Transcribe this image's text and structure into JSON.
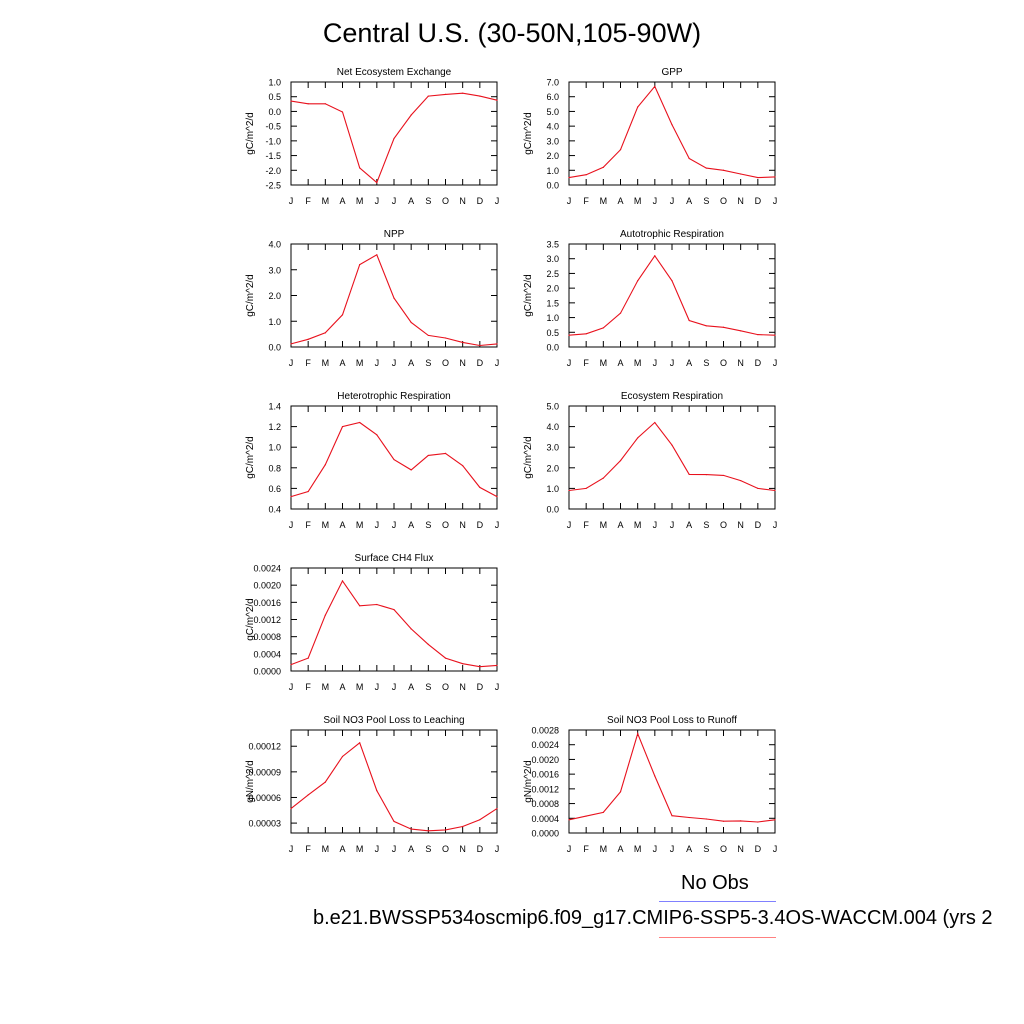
{
  "title": "Central U.S. (30-50N,105-90W)",
  "legend": {
    "obs_label": "No Obs",
    "case_label": "b.e21.BWSSP534oscmip6.f09_g17.CMIP6-SSP5-3.4OS-WACCM.004 (yrs 2",
    "obs_color": "#8080ff",
    "case_color": "#ff8080"
  },
  "line_color": "#e8111d",
  "chart_data": [
    {
      "type": "line",
      "title": "Net Ecosystem Exchange",
      "xlabel": "",
      "ylabel": "gC/m^2/d",
      "categories": [
        "J",
        "F",
        "M",
        "A",
        "M",
        "J",
        "J",
        "A",
        "S",
        "O",
        "N",
        "D",
        "J"
      ],
      "values": [
        0.35,
        0.26,
        0.26,
        -0.02,
        -1.92,
        -2.42,
        -0.92,
        -0.12,
        0.52,
        0.58,
        0.62,
        0.52,
        0.38
      ],
      "ylim": [
        -2.5,
        1.0
      ],
      "yticks": [
        -2.5,
        -2.0,
        -1.5,
        -1.0,
        -0.5,
        0.0,
        0.5,
        1.0
      ],
      "ytick_labels": [
        "-2.5",
        "-2.0",
        "-1.5",
        "-1.0",
        "-0.5",
        "0.0",
        "0.5",
        "1.0"
      ]
    },
    {
      "type": "line",
      "title": "GPP",
      "xlabel": "",
      "ylabel": "gC/m^2/d",
      "categories": [
        "J",
        "F",
        "M",
        "A",
        "M",
        "J",
        "J",
        "A",
        "S",
        "O",
        "N",
        "D",
        "J"
      ],
      "values": [
        0.5,
        0.7,
        1.2,
        2.4,
        5.3,
        6.7,
        4.1,
        1.8,
        1.15,
        1.0,
        0.75,
        0.5,
        0.55
      ],
      "ylim": [
        0.0,
        7.0
      ],
      "yticks": [
        0,
        1,
        2,
        3,
        4,
        5,
        6,
        7
      ],
      "ytick_labels": [
        "0.0",
        "1.0",
        "2.0",
        "3.0",
        "4.0",
        "5.0",
        "6.0",
        "7.0"
      ]
    },
    {
      "type": "line",
      "title": "NPP",
      "xlabel": "",
      "ylabel": "gC/m^2/d",
      "categories": [
        "J",
        "F",
        "M",
        "A",
        "M",
        "J",
        "J",
        "A",
        "S",
        "O",
        "N",
        "D",
        "J"
      ],
      "values": [
        0.12,
        0.3,
        0.55,
        1.25,
        3.2,
        3.58,
        1.9,
        0.95,
        0.45,
        0.35,
        0.18,
        0.06,
        0.12
      ],
      "ylim": [
        0.0,
        4.0
      ],
      "yticks": [
        0,
        1,
        2,
        3,
        4
      ],
      "ytick_labels": [
        "0.0",
        "1.0",
        "2.0",
        "3.0",
        "4.0"
      ]
    },
    {
      "type": "line",
      "title": "Autotrophic Respiration",
      "xlabel": "",
      "ylabel": "gC/m^2/d",
      "categories": [
        "J",
        "F",
        "M",
        "A",
        "M",
        "J",
        "J",
        "A",
        "S",
        "O",
        "N",
        "D",
        "J"
      ],
      "values": [
        0.4,
        0.45,
        0.65,
        1.15,
        2.25,
        3.1,
        2.25,
        0.9,
        0.72,
        0.67,
        0.55,
        0.42,
        0.4
      ],
      "ylim": [
        0.0,
        3.5
      ],
      "yticks": [
        0,
        0.5,
        1.0,
        1.5,
        2.0,
        2.5,
        3.0,
        3.5
      ],
      "ytick_labels": [
        "0.0",
        "0.5",
        "1.0",
        "1.5",
        "2.0",
        "2.5",
        "3.0",
        "3.5"
      ]
    },
    {
      "type": "line",
      "title": "Heterotrophic Respiration",
      "xlabel": "",
      "ylabel": "gC/m^2/d",
      "categories": [
        "J",
        "F",
        "M",
        "A",
        "M",
        "J",
        "J",
        "A",
        "S",
        "O",
        "N",
        "D",
        "J"
      ],
      "values": [
        0.52,
        0.57,
        0.83,
        1.2,
        1.24,
        1.12,
        0.88,
        0.78,
        0.92,
        0.94,
        0.82,
        0.61,
        0.52
      ],
      "ylim": [
        0.4,
        1.4
      ],
      "yticks": [
        0.4,
        0.6,
        0.8,
        1.0,
        1.2,
        1.4
      ],
      "ytick_labels": [
        "0.4",
        "0.6",
        "0.8",
        "1.0",
        "1.2",
        "1.4"
      ]
    },
    {
      "type": "line",
      "title": "Ecosystem Respiration",
      "xlabel": "",
      "ylabel": "gC/m^2/d",
      "categories": [
        "J",
        "F",
        "M",
        "A",
        "M",
        "J",
        "J",
        "A",
        "S",
        "O",
        "N",
        "D",
        "J"
      ],
      "values": [
        0.9,
        1.0,
        1.5,
        2.35,
        3.45,
        4.2,
        3.1,
        1.68,
        1.67,
        1.63,
        1.38,
        1.0,
        0.9
      ],
      "ylim": [
        0.0,
        5.0
      ],
      "yticks": [
        0,
        1,
        2,
        3,
        4,
        5
      ],
      "ytick_labels": [
        "0.0",
        "1.0",
        "2.0",
        "3.0",
        "4.0",
        "5.0"
      ]
    },
    {
      "type": "line",
      "title": "Surface CH4 Flux",
      "xlabel": "",
      "ylabel": "gC/m^2/d",
      "categories": [
        "J",
        "F",
        "M",
        "A",
        "M",
        "J",
        "J",
        "A",
        "S",
        "O",
        "N",
        "D",
        "J"
      ],
      "values": [
        0.00015,
        0.0003,
        0.0013,
        0.0021,
        0.00152,
        0.00155,
        0.00143,
        0.00098,
        0.00062,
        0.0003,
        0.00017,
        0.0001,
        0.00013
      ],
      "ylim": [
        0.0,
        0.0024
      ],
      "yticks": [
        0,
        0.0004,
        0.0008,
        0.0012,
        0.0016,
        0.002,
        0.0024
      ],
      "ytick_labels": [
        "0.0000",
        "0.0004",
        "0.0008",
        "0.0012",
        "0.0016",
        "0.0020",
        "0.0024"
      ]
    },
    {
      "type": "line",
      "title": "Soil NO3 Pool Loss to Leaching",
      "xlabel": "",
      "ylabel": "gN/m^2/d",
      "categories": [
        "J",
        "F",
        "M",
        "A",
        "M",
        "J",
        "J",
        "A",
        "S",
        "O",
        "N",
        "D",
        "J"
      ],
      "values": [
        4.7e-05,
        6.3e-05,
        7.8e-05,
        0.000108,
        0.000124,
        6.8e-05,
        3.2e-05,
        2.3e-05,
        2.1e-05,
        2.2e-05,
        2.6e-05,
        3.4e-05,
        4.7e-05
      ],
      "ylim": [
        1.84e-05,
        0.000139
      ],
      "yticks": [
        3e-05,
        6e-05,
        9e-05,
        0.00012
      ],
      "ytick_labels": [
        "0.00003",
        "0.00006",
        "0.00009",
        "0.00012"
      ]
    },
    {
      "type": "line",
      "title": "Soil NO3 Pool Loss to Runoff",
      "xlabel": "",
      "ylabel": "gN/m^2/d",
      "categories": [
        "J",
        "F",
        "M",
        "A",
        "M",
        "J",
        "J",
        "A",
        "S",
        "O",
        "N",
        "D",
        "J"
      ],
      "values": [
        0.00036,
        0.00046,
        0.00056,
        0.00112,
        0.0027,
        0.00155,
        0.00047,
        0.00042,
        0.00038,
        0.00032,
        0.00033,
        0.0003,
        0.00036
      ],
      "ylim": [
        0.0,
        0.0028
      ],
      "yticks": [
        0,
        0.0004,
        0.0008,
        0.0012,
        0.0016,
        0.002,
        0.0024,
        0.0028
      ],
      "ytick_labels": [
        "0.0000",
        "0.0004",
        "0.0008",
        "0.0012",
        "0.0016",
        "0.0020",
        "0.0024",
        "0.0028"
      ]
    }
  ]
}
